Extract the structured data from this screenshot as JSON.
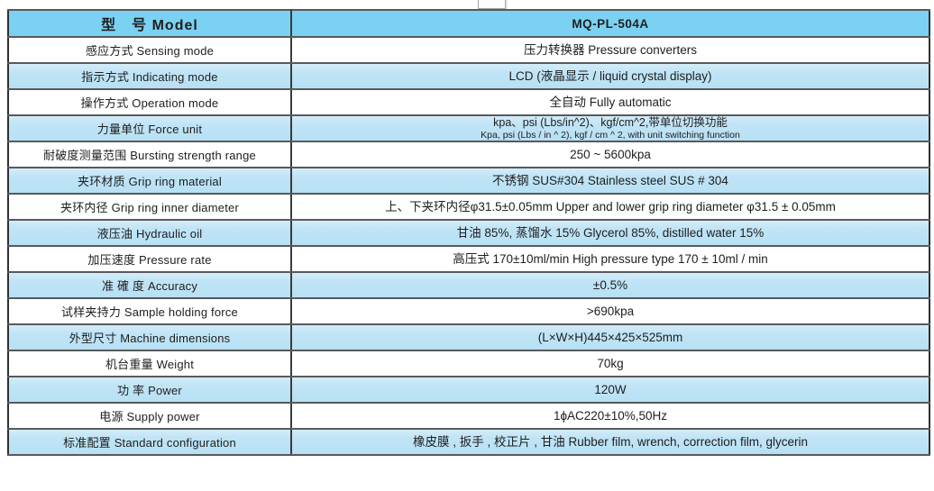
{
  "page": {
    "background": "#ffffff"
  },
  "artifact": {
    "top_partial_box": ""
  },
  "table": {
    "colors": {
      "header_fill": "#7bd1f2",
      "stripe_fill_top": "#d6edf9",
      "stripe_fill_bottom": "#b7e0f4",
      "plain_fill": "#ffffff",
      "outer_border": "#2f3031",
      "inner_border": "#58595b",
      "column_divider": "#3a3b3c",
      "text": "#202020"
    },
    "header": {
      "label": "型　号 Model",
      "value": "MQ-PL-504A"
    },
    "rows": [
      {
        "label": "感应方式 Sensing mode",
        "value": "压力转换器 Pressure converters"
      },
      {
        "label": "指示方式 Indicating mode",
        "value": "LCD (液晶显示 / liquid crystal display)"
      },
      {
        "label": "操作方式 Operation mode",
        "value": "全自动 Fully automatic"
      },
      {
        "label": "力量单位 Force unit",
        "value": "kpa、psi (Lbs/in^2)、kgf/cm^2,带单位切换功能",
        "value2": "Kpa, psi (Lbs / in ^ 2), kgf / cm ^ 2, with unit switching function"
      },
      {
        "label": "耐破度测量范围 Bursting strength range",
        "value": "250 ~ 5600kpa"
      },
      {
        "label": "夹环材质 Grip ring material",
        "value": "不锈钢 SUS#304  Stainless steel SUS # 304"
      },
      {
        "label": "夹环内径 Grip ring inner diameter",
        "value": "上、下夹环内径φ31.5±0.05mm Upper and lower grip ring diameter φ31.5 ± 0.05mm"
      },
      {
        "label": "液压油 Hydraulic oil",
        "value": "甘油 85%, 蒸馏水 15% Glycerol 85%, distilled water 15%"
      },
      {
        "label": "加压速度 Pressure rate",
        "value": "高压式 170±10ml/min High pressure type 170 ± 10ml / min"
      },
      {
        "label": "准 確 度 Accuracy",
        "value": "±0.5%"
      },
      {
        "label": "试样夹持力 Sample holding force",
        "value": ">690kpa"
      },
      {
        "label": "外型尺寸 Machine dimensions",
        "value": "(L×W×H)445×425×525mm"
      },
      {
        "label": "机台重量 Weight",
        "value": "70kg"
      },
      {
        "label": "功 率 Power",
        "value": "120W"
      },
      {
        "label": "电源 Supply power",
        "value": "1ϕAC220±10%,50Hz"
      },
      {
        "label": "标准配置 Standard configuration",
        "value": "橡皮膜 , 扳手 , 校正片 , 甘油 Rubber film, wrench, correction film, glycerin"
      }
    ]
  }
}
